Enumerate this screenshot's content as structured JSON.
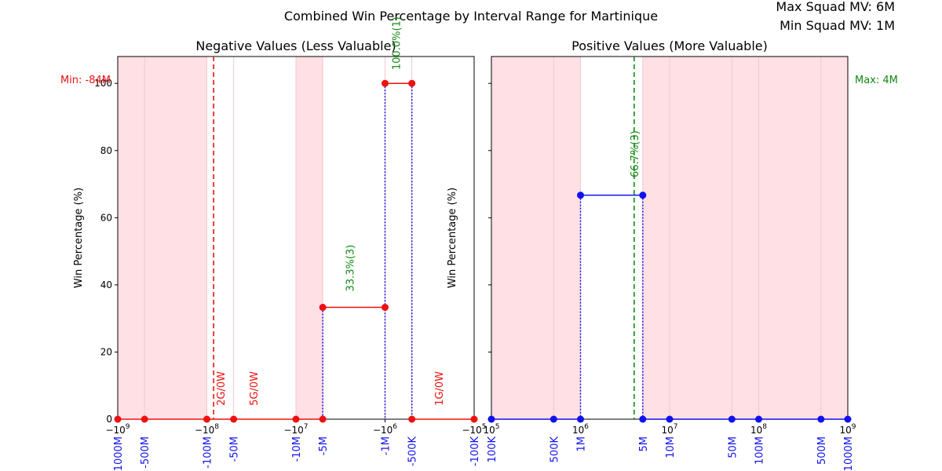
{
  "header": {
    "title": "Combined Win Percentage by Interval Range for Martinique",
    "max_mv": "Max Squad MV: 6M",
    "min_mv": "Min Squad MV: 1M"
  },
  "colors": {
    "red": "#ee1111",
    "blue": "#1111ee",
    "green": "#118811",
    "shade": "#ffdde2"
  },
  "chart_data": [
    {
      "type": "line",
      "title": "Negative Values (Less Valuable)",
      "ylabel": "Win Percentage (%)",
      "xscale": "symlog",
      "xlim": [
        -1000000000,
        -100000
      ],
      "ylim": [
        0,
        108
      ],
      "yticks": [
        0,
        20,
        40,
        60,
        80,
        100
      ],
      "xtick_labels": [
        {
          "value": -1000000000,
          "base": "−10",
          "exp": "9"
        },
        {
          "value": -100000000,
          "base": "−10",
          "exp": "8"
        },
        {
          "value": -10000000,
          "base": "−10",
          "exp": "7"
        },
        {
          "value": -1000000,
          "base": "−10",
          "exp": "6"
        },
        {
          "value": -100000,
          "base": "−10",
          "exp": "5"
        }
      ],
      "interval_labels": [
        {
          "value": -1000000000,
          "label": "-1000M"
        },
        {
          "value": -500000000,
          "label": "-500M"
        },
        {
          "value": -100000000,
          "label": "-100M"
        },
        {
          "value": -50000000,
          "label": "-50M"
        },
        {
          "value": -10000000,
          "label": "-10M"
        },
        {
          "value": -5000000,
          "label": "-5M"
        },
        {
          "value": -1000000,
          "label": "-1M"
        },
        {
          "value": -500000,
          "label": "-500K"
        },
        {
          "value": -100000,
          "label": "-100K"
        }
      ],
      "points": [
        {
          "x": -1000000000,
          "y": 0
        },
        {
          "x": -500000000,
          "y": 0
        },
        {
          "x": -100000000,
          "y": 0
        },
        {
          "x": -50000000,
          "y": 0
        },
        {
          "x": -10000000,
          "y": 0
        },
        {
          "x": -5000000,
          "y": 0
        },
        {
          "x": -500000,
          "y": 0
        },
        {
          "x": -100000,
          "y": 0
        }
      ],
      "segments": [
        {
          "x1": -1000000000,
          "x2": -500000000,
          "y": 0
        },
        {
          "x1": -500000000,
          "x2": -100000000,
          "y": 0
        },
        {
          "x1": -100000000,
          "x2": -50000000,
          "y": 0
        },
        {
          "x1": -50000000,
          "x2": -10000000,
          "y": 0
        },
        {
          "x1": -10000000,
          "x2": -5000000,
          "y": 0
        },
        {
          "x1": -5000000,
          "x2": -1000000,
          "y": 33.3
        },
        {
          "x1": -1000000,
          "x2": -500000,
          "y": 100
        },
        {
          "x1": -500000,
          "x2": -100000,
          "y": 0
        }
      ],
      "shaded": [
        {
          "x1": -1000000000,
          "x2": -100000000
        },
        {
          "x1": -10000000,
          "x2": -5000000
        }
      ],
      "stems": [
        -5000000,
        -1000000,
        -500000
      ],
      "ref_line": {
        "x": -84000000,
        "label": "Min: -84M"
      },
      "annotations": [
        {
          "x": -70000000,
          "y": 4,
          "text": "2G/0W",
          "color": "red"
        },
        {
          "x": -30000000,
          "y": 4,
          "text": "5G/0W",
          "color": "red"
        },
        {
          "x": -2500000,
          "y": 38,
          "text": "33.3%(3)",
          "color": "green"
        },
        {
          "x": -750000,
          "y": 104,
          "text": "100.0%(1)",
          "color": "green"
        },
        {
          "x": -250000,
          "y": 4,
          "text": "1G/0W",
          "color": "red"
        }
      ]
    },
    {
      "type": "line",
      "title": "Positive Values (More Valuable)",
      "ylabel": "Win Percentage (%)",
      "xscale": "log",
      "xlim": [
        100000,
        1000000000
      ],
      "ylim": [
        0,
        108
      ],
      "yticks": [
        0,
        20,
        40,
        60,
        80,
        100
      ],
      "xtick_labels": [
        {
          "value": 100000,
          "base": "10",
          "exp": "5"
        },
        {
          "value": 1000000,
          "base": "10",
          "exp": "6"
        },
        {
          "value": 10000000,
          "base": "10",
          "exp": "7"
        },
        {
          "value": 100000000,
          "base": "10",
          "exp": "8"
        },
        {
          "value": 1000000000,
          "base": "10",
          "exp": "9"
        }
      ],
      "interval_labels": [
        {
          "value": 100000,
          "label": "100K"
        },
        {
          "value": 500000,
          "label": "500K"
        },
        {
          "value": 1000000,
          "label": "1M"
        },
        {
          "value": 5000000,
          "label": "5M"
        },
        {
          "value": 10000000,
          "label": "10M"
        },
        {
          "value": 50000000,
          "label": "50M"
        },
        {
          "value": 100000000,
          "label": "100M"
        },
        {
          "value": 500000000,
          "label": "500M"
        },
        {
          "value": 1000000000,
          "label": "1000M"
        }
      ],
      "points": [
        {
          "x": 100000,
          "y": 0
        },
        {
          "x": 500000,
          "y": 0
        },
        {
          "x": 1000000,
          "y": 0
        },
        {
          "x": 5000000,
          "y": 0
        },
        {
          "x": 10000000,
          "y": 0
        },
        {
          "x": 50000000,
          "y": 0
        },
        {
          "x": 100000000,
          "y": 0
        },
        {
          "x": 500000000,
          "y": 0
        },
        {
          "x": 1000000000,
          "y": 0
        }
      ],
      "segments": [
        {
          "x1": 100000,
          "x2": 500000,
          "y": 0
        },
        {
          "x1": 500000,
          "x2": 1000000,
          "y": 0
        },
        {
          "x1": 1000000,
          "x2": 5000000,
          "y": 66.7
        },
        {
          "x1": 5000000,
          "x2": 10000000,
          "y": 0
        },
        {
          "x1": 10000000,
          "x2": 50000000,
          "y": 0
        },
        {
          "x1": 50000000,
          "x2": 100000000,
          "y": 0
        },
        {
          "x1": 100000000,
          "x2": 500000000,
          "y": 0
        },
        {
          "x1": 500000000,
          "x2": 1000000000,
          "y": 0
        }
      ],
      "shaded": [
        {
          "x1": 100000,
          "x2": 1000000
        },
        {
          "x1": 5000000,
          "x2": 1000000000
        }
      ],
      "stems": [
        1000000,
        5000000
      ],
      "ref_line": {
        "x": 4000000,
        "label": "Max: 4M"
      },
      "annotations": [
        {
          "x": 4000000,
          "y": 72,
          "text": "66.7%(3)",
          "color": "green"
        }
      ]
    }
  ]
}
